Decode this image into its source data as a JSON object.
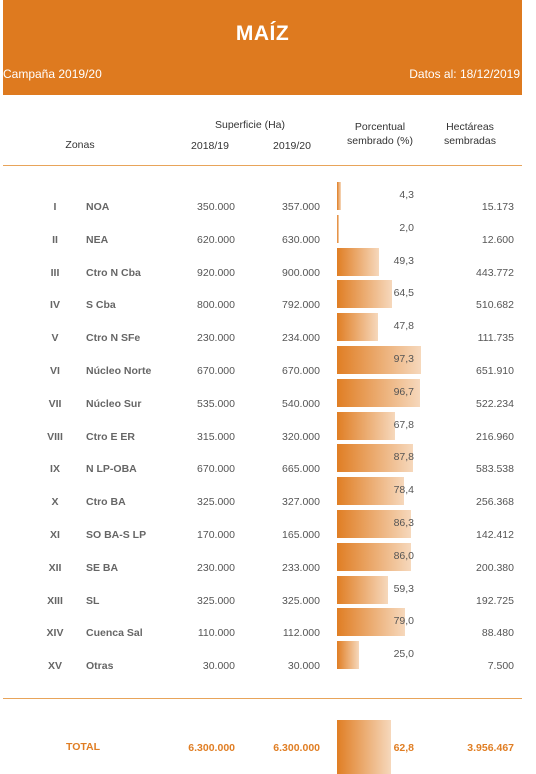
{
  "header": {
    "title": "MAÍZ",
    "campaign": "Campaña 2019/20",
    "date": "Datos al: 18/12/2019"
  },
  "columns": {
    "zonas": "Zonas",
    "superficie": "Superficie (Ha)",
    "y1": "2018/19",
    "y2": "2019/20",
    "porcentual_1": "Porcentual",
    "porcentual_2": "sembrado (%)",
    "hectareas_1": "Hectáreas",
    "hectareas_2": "sembradas"
  },
  "chart_data": {
    "type": "table",
    "rows": [
      {
        "num": "I",
        "zona": "NOA",
        "s1819": "350.000",
        "s1920": "357.000",
        "pct": "4,3",
        "pct_value": 4.3,
        "ha": "15.173"
      },
      {
        "num": "II",
        "zona": "NEA",
        "s1819": "620.000",
        "s1920": "630.000",
        "pct": "2,0",
        "pct_value": 2.0,
        "ha": "12.600"
      },
      {
        "num": "III",
        "zona": "Ctro N Cba",
        "s1819": "920.000",
        "s1920": "900.000",
        "pct": "49,3",
        "pct_value": 49.3,
        "ha": "443.772"
      },
      {
        "num": "IV",
        "zona": "S Cba",
        "s1819": "800.000",
        "s1920": "792.000",
        "pct": "64,5",
        "pct_value": 64.5,
        "ha": "510.682"
      },
      {
        "num": "V",
        "zona": "Ctro N SFe",
        "s1819": "230.000",
        "s1920": "234.000",
        "pct": "47,8",
        "pct_value": 47.8,
        "ha": "111.735"
      },
      {
        "num": "VI",
        "zona": "Núcleo Norte",
        "s1819": "670.000",
        "s1920": "670.000",
        "pct": "97,3",
        "pct_value": 97.3,
        "ha": "651.910"
      },
      {
        "num": "VII",
        "zona": "Núcleo Sur",
        "s1819": "535.000",
        "s1920": "540.000",
        "pct": "96,7",
        "pct_value": 96.7,
        "ha": "522.234"
      },
      {
        "num": "VIII",
        "zona": "Ctro E ER",
        "s1819": "315.000",
        "s1920": "320.000",
        "pct": "67,8",
        "pct_value": 67.8,
        "ha": "216.960"
      },
      {
        "num": "IX",
        "zona": "N LP-OBA",
        "s1819": "670.000",
        "s1920": "665.000",
        "pct": "87,8",
        "pct_value": 87.8,
        "ha": "583.538"
      },
      {
        "num": "X",
        "zona": "Ctro BA",
        "s1819": "325.000",
        "s1920": "327.000",
        "pct": "78,4",
        "pct_value": 78.4,
        "ha": "256.368"
      },
      {
        "num": "XI",
        "zona": "SO BA-S LP",
        "s1819": "170.000",
        "s1920": "165.000",
        "pct": "86,3",
        "pct_value": 86.3,
        "ha": "142.412"
      },
      {
        "num": "XII",
        "zona": "SE BA",
        "s1819": "230.000",
        "s1920": "233.000",
        "pct": "86,0",
        "pct_value": 86.0,
        "ha": "200.380"
      },
      {
        "num": "XIII",
        "zona": "SL",
        "s1819": "325.000",
        "s1920": "325.000",
        "pct": "59,3",
        "pct_value": 59.3,
        "ha": "192.725"
      },
      {
        "num": "XIV",
        "zona": "Cuenca Sal",
        "s1819": "110.000",
        "s1920": "112.000",
        "pct": "79,0",
        "pct_value": 79.0,
        "ha": "88.480"
      },
      {
        "num": "XV",
        "zona": "Otras",
        "s1819": "30.000",
        "s1920": "30.000",
        "pct": "25,0",
        "pct_value": 25.0,
        "ha": "7.500"
      }
    ],
    "total": {
      "label": "TOTAL",
      "s1819": "6.300.000",
      "s1920": "6.300.000",
      "pct": "62,8",
      "pct_value": 62.8,
      "ha": "3.956.467"
    },
    "bar_scale": [
      0,
      100
    ]
  },
  "colors": {
    "accent": "#de7a1f"
  }
}
